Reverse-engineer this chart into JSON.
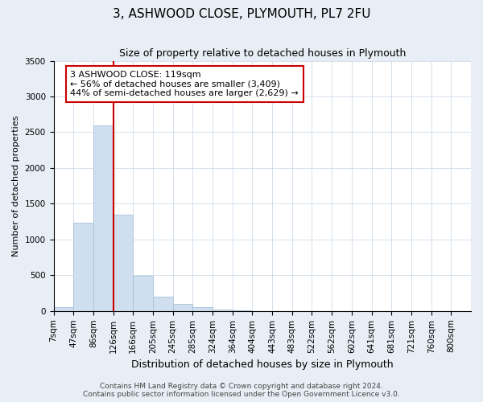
{
  "title": "3, ASHWOOD CLOSE, PLYMOUTH, PL7 2FU",
  "subtitle": "Size of property relative to detached houses in Plymouth",
  "xlabel": "Distribution of detached houses by size in Plymouth",
  "ylabel": "Number of detached properties",
  "bin_labels": [
    "7sqm",
    "47sqm",
    "86sqm",
    "126sqm",
    "166sqm",
    "205sqm",
    "245sqm",
    "285sqm",
    "324sqm",
    "364sqm",
    "404sqm",
    "443sqm",
    "483sqm",
    "522sqm",
    "562sqm",
    "602sqm",
    "641sqm",
    "681sqm",
    "721sqm",
    "760sqm",
    "800sqm"
  ],
  "bar_values": [
    50,
    1240,
    2590,
    1350,
    490,
    195,
    100,
    50,
    15,
    5,
    2,
    1,
    1,
    0,
    0,
    0,
    0,
    0,
    0,
    0
  ],
  "bar_color": "#d0dff0",
  "bar_edge_color": "#a8c0d8",
  "red_line_index": 3,
  "red_line_color": "#cc0000",
  "annotation_text": "3 ASHWOOD CLOSE: 119sqm\n← 56% of detached houses are smaller (3,409)\n44% of semi-detached houses are larger (2,629) →",
  "annotation_box_facecolor": "white",
  "annotation_box_edgecolor": "#cc0000",
  "ylim": [
    0,
    3500
  ],
  "yticks": [
    0,
    500,
    1000,
    1500,
    2000,
    2500,
    3000,
    3500
  ],
  "footnote": "Contains HM Land Registry data © Crown copyright and database right 2024.\nContains public sector information licensed under the Open Government Licence v3.0.",
  "fig_facecolor": "#e8eef5",
  "ax_facecolor": "#ffffff",
  "grid_color": "#c5d5e5",
  "title_fontsize": 11,
  "subtitle_fontsize": 9,
  "ylabel_fontsize": 8,
  "xlabel_fontsize": 9,
  "annotation_fontsize": 8,
  "tick_fontsize": 7.5,
  "footnote_fontsize": 6.5
}
